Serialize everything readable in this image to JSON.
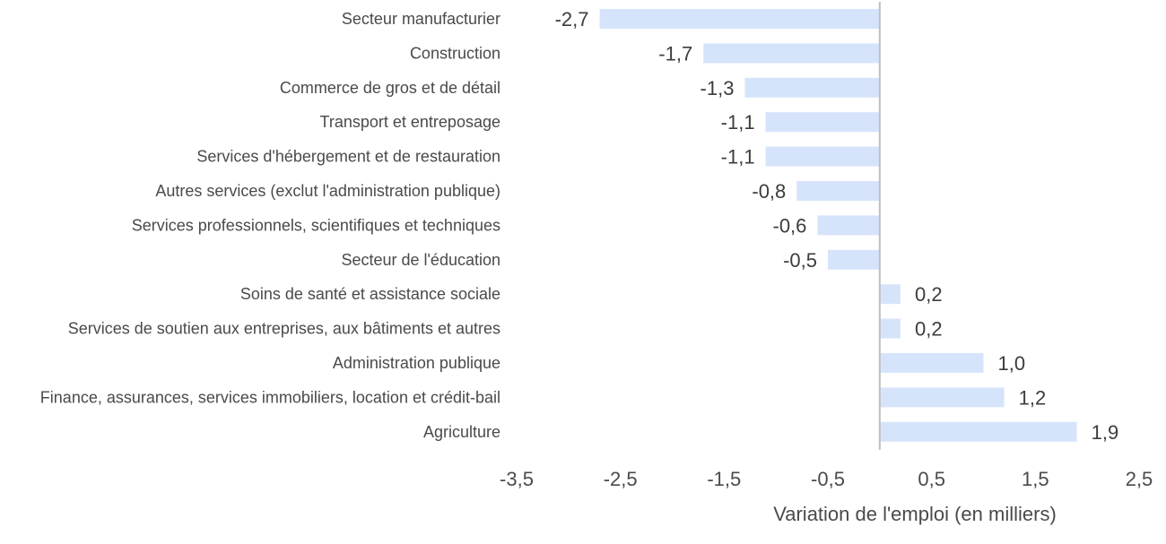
{
  "chart_data": {
    "type": "bar",
    "orientation": "horizontal",
    "categories": [
      "Secteur manufacturier",
      "Construction",
      "Commerce de gros et de détail",
      "Transport et entreposage",
      "Services d'hébergement et de restauration",
      "Autres services (exclut l'administration publique)",
      "Services professionnels, scientifiques et techniques",
      "Secteur de l'éducation",
      "Soins de santé et assistance sociale",
      "Services de soutien aux entreprises, aux bâtiments et autres",
      "Administration publique",
      "Finance, assurances, services immobiliers, location et crédit-bail",
      "Agriculture"
    ],
    "values": [
      -2.7,
      -1.7,
      -1.3,
      -1.1,
      -1.1,
      -0.8,
      -0.6,
      -0.5,
      0.2,
      0.2,
      1.0,
      1.2,
      1.9
    ],
    "value_labels": [
      "-2,7",
      "-1,7",
      "-1,3",
      "-1,1",
      "-1,1",
      "-0,8",
      "-0,6",
      "-0,5",
      "0,2",
      "0,2",
      "1,0",
      "1,2",
      "1,9"
    ],
    "xlim": [
      -3.5,
      2.5
    ],
    "x_ticks": [
      -3.5,
      -2.5,
      -1.5,
      -0.5,
      0.5,
      1.5,
      2.5
    ],
    "x_tick_labels": [
      "-3,5",
      "-2,5",
      "-1,5",
      "-0,5",
      "0,5",
      "1,5",
      "2,5"
    ],
    "xlabel": "Variation de l'emploi (en milliers)",
    "ylabel": "",
    "title": "",
    "grid": false,
    "legend": "none",
    "colors": {
      "bar": "#d6e4fb",
      "zero_line": "#bfbfbf",
      "text": "#4a4a4a"
    }
  }
}
